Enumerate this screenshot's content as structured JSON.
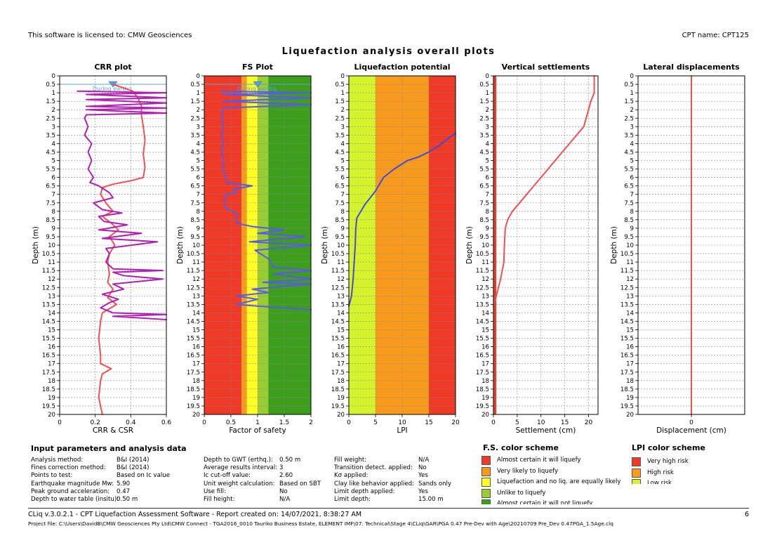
{
  "header": {
    "license": "This software is licensed to: CMW Geosciences",
    "cpt_name": "CPT name: CPT125",
    "main_title": "Liquefaction analysis overall plots"
  },
  "colors": {
    "red": "#f03a28",
    "orange": "#f79a1e",
    "yellow": "#ffff26",
    "lightgreen": "#9acd32",
    "green": "#3c9e1c",
    "limeyellow": "#d4f32c",
    "crr": "#f05050",
    "csr": "#b020b0",
    "fs": "#5a5ae6",
    "lpi": "#4848d8",
    "settlement": "#f05050",
    "displacement": "#f05050",
    "gwt": "#5aa0dc"
  },
  "chart_data": [
    {
      "type": "line",
      "title": "CRR plot",
      "xlabel": "CRR & CSR",
      "ylabel": "Depth (m)",
      "xlim": [
        0,
        0.6
      ],
      "ylim": [
        0,
        20
      ],
      "y_inverted": true,
      "xticks": [
        "0",
        "0.2",
        "0.4",
        "0.6"
      ],
      "annotation": "During earthq.",
      "gwt_depth": 0.5,
      "series": [
        {
          "key": "crr",
          "points": [
            [
              0.3,
              0.5
            ],
            [
              0.41,
              0.9
            ],
            [
              0.44,
              1.3
            ],
            [
              0.46,
              1.8
            ],
            [
              0.46,
              2.3
            ],
            [
              0.47,
              3.0
            ],
            [
              0.48,
              3.8
            ],
            [
              0.47,
              4.6
            ],
            [
              0.48,
              5.4
            ],
            [
              0.47,
              6.0
            ],
            [
              0.4,
              6.2
            ],
            [
              0.3,
              6.4
            ],
            [
              0.24,
              6.6
            ],
            [
              0.23,
              7.0
            ],
            [
              0.26,
              7.5
            ],
            [
              0.3,
              8.0
            ],
            [
              0.24,
              8.3
            ],
            [
              0.29,
              8.7
            ],
            [
              0.33,
              9.1
            ],
            [
              0.28,
              9.5
            ],
            [
              0.31,
              10.0
            ],
            [
              0.28,
              10.5
            ],
            [
              0.27,
              11.0
            ],
            [
              0.28,
              11.7
            ],
            [
              0.27,
              12.2
            ],
            [
              0.3,
              12.6
            ],
            [
              0.27,
              13.1
            ],
            [
              0.32,
              13.5
            ],
            [
              0.24,
              14.0
            ],
            [
              0.23,
              14.5
            ],
            [
              0.22,
              15.5
            ],
            [
              0.23,
              16.5
            ],
            [
              0.23,
              17.0
            ],
            [
              0.29,
              17.3
            ],
            [
              0.24,
              17.6
            ],
            [
              0.23,
              18.0
            ],
            [
              0.22,
              19.0
            ],
            [
              0.24,
              20.0
            ]
          ]
        },
        {
          "key": "csr",
          "points": [
            [
              0.1,
              0.9
            ],
            [
              0.6,
              1.0
            ],
            [
              0.15,
              1.1
            ],
            [
              0.6,
              1.3
            ],
            [
              0.15,
              1.4
            ],
            [
              0.6,
              1.6
            ],
            [
              0.15,
              1.8
            ],
            [
              0.6,
              1.9
            ],
            [
              0.15,
              2.0
            ],
            [
              0.6,
              2.2
            ],
            [
              0.15,
              2.3
            ],
            [
              0.14,
              2.5
            ],
            [
              0.16,
              3.0
            ],
            [
              0.14,
              3.5
            ],
            [
              0.18,
              4.0
            ],
            [
              0.16,
              4.5
            ],
            [
              0.18,
              5.0
            ],
            [
              0.16,
              5.5
            ],
            [
              0.19,
              6.0
            ],
            [
              0.17,
              6.3
            ],
            [
              0.22,
              6.5
            ],
            [
              0.28,
              6.9
            ],
            [
              0.3,
              7.2
            ],
            [
              0.19,
              7.5
            ],
            [
              0.24,
              7.9
            ],
            [
              0.35,
              8.1
            ],
            [
              0.22,
              8.3
            ],
            [
              0.25,
              8.6
            ],
            [
              0.38,
              8.8
            ],
            [
              0.22,
              9.1
            ],
            [
              0.46,
              9.3
            ],
            [
              0.24,
              9.6
            ],
            [
              0.55,
              9.8
            ],
            [
              0.26,
              10.2
            ],
            [
              0.28,
              10.5
            ],
            [
              0.26,
              11.0
            ],
            [
              0.3,
              11.4
            ],
            [
              0.58,
              11.5
            ],
            [
              0.3,
              11.6
            ],
            [
              0.36,
              11.8
            ],
            [
              0.58,
              12.0
            ],
            [
              0.3,
              12.3
            ],
            [
              0.36,
              12.6
            ],
            [
              0.24,
              12.9
            ],
            [
              0.33,
              13.2
            ],
            [
              0.28,
              13.4
            ],
            [
              0.23,
              13.7
            ],
            [
              0.3,
              14.0
            ],
            [
              0.6,
              14.1
            ],
            [
              0.3,
              14.2
            ],
            [
              0.6,
              14.4
            ]
          ]
        }
      ]
    },
    {
      "type": "line",
      "title": "FS Plot",
      "xlabel": "Factor of safety",
      "ylabel": "Depth (m)",
      "xlim": [
        0,
        2
      ],
      "ylim": [
        0,
        20
      ],
      "y_inverted": true,
      "xticks": [
        "0",
        "0.5",
        "1",
        "1.5",
        "2"
      ],
      "annotation": "During earthq.",
      "gwt_depth": 0.5,
      "bands": [
        {
          "from": 0,
          "to": 0.7,
          "color_key": "red"
        },
        {
          "from": 0.7,
          "to": 0.8,
          "color_key": "orange"
        },
        {
          "from": 0.8,
          "to": 1.0,
          "color_key": "yellow"
        },
        {
          "from": 1.0,
          "to": 1.2,
          "color_key": "lightgreen"
        },
        {
          "from": 1.2,
          "to": 2.0,
          "color_key": "green"
        }
      ],
      "series": [
        {
          "key": "fs",
          "points": [
            [
              0.3,
              0.9
            ],
            [
              2.0,
              1.0
            ],
            [
              0.35,
              1.1
            ],
            [
              2.0,
              1.3
            ],
            [
              0.35,
              1.5
            ],
            [
              2.0,
              1.7
            ],
            [
              0.35,
              1.9
            ],
            [
              0.33,
              2.3
            ],
            [
              0.35,
              3.0
            ],
            [
              0.33,
              3.5
            ],
            [
              0.35,
              4.0
            ],
            [
              0.33,
              4.5
            ],
            [
              0.36,
              5.0
            ],
            [
              0.35,
              5.5
            ],
            [
              0.4,
              6.0
            ],
            [
              0.42,
              6.3
            ],
            [
              0.9,
              6.5
            ],
            [
              0.55,
              6.7
            ],
            [
              0.6,
              6.9
            ],
            [
              0.4,
              7.0
            ],
            [
              0.38,
              7.4
            ],
            [
              0.4,
              7.8
            ],
            [
              0.6,
              8.1
            ],
            [
              0.62,
              8.4
            ],
            [
              0.6,
              8.7
            ],
            [
              0.9,
              8.9
            ],
            [
              1.5,
              9.1
            ],
            [
              1.0,
              9.3
            ],
            [
              1.9,
              9.5
            ],
            [
              0.85,
              9.8
            ],
            [
              2.0,
              10.0
            ],
            [
              0.95,
              10.3
            ],
            [
              1.2,
              10.8
            ],
            [
              1.3,
              11.3
            ],
            [
              2.0,
              11.5
            ],
            [
              1.3,
              11.7
            ],
            [
              2.0,
              12.0
            ],
            [
              1.1,
              12.2
            ],
            [
              2.0,
              12.3
            ],
            [
              0.9,
              12.6
            ],
            [
              1.2,
              12.8
            ],
            [
              0.6,
              13.0
            ],
            [
              1.0,
              13.2
            ],
            [
              0.6,
              13.5
            ],
            [
              1.0,
              13.6
            ],
            [
              2.0,
              13.8
            ]
          ]
        }
      ]
    },
    {
      "type": "line",
      "title": "Liquefaction potential",
      "xlabel": "LPI",
      "ylabel": "Depth (m)",
      "xlim": [
        0,
        20
      ],
      "ylim": [
        0,
        20
      ],
      "y_inverted": true,
      "xticks": [
        "0",
        "5",
        "10",
        "15",
        "20"
      ],
      "bands": [
        {
          "from": 0,
          "to": 5,
          "color_key": "limeyellow"
        },
        {
          "from": 5,
          "to": 15,
          "color_key": "orange"
        },
        {
          "from": 15,
          "to": 20,
          "color_key": "red"
        }
      ],
      "series": [
        {
          "key": "lpi",
          "points": [
            [
              0.0,
              13.6
            ],
            [
              0.5,
              13.0
            ],
            [
              0.8,
              12.0
            ],
            [
              1.0,
              11.0
            ],
            [
              1.2,
              10.0
            ],
            [
              1.3,
              9.0
            ],
            [
              1.5,
              8.4
            ],
            [
              3.0,
              7.6
            ],
            [
              5.0,
              6.8
            ],
            [
              6.5,
              6.0
            ],
            [
              8.5,
              5.5
            ],
            [
              11.0,
              5.0
            ],
            [
              13.0,
              4.8
            ],
            [
              15.0,
              4.5
            ],
            [
              17.0,
              4.1
            ],
            [
              19.0,
              3.6
            ],
            [
              20.0,
              3.4
            ]
          ]
        }
      ]
    },
    {
      "type": "line",
      "title": "Vertical settlements",
      "xlabel": "Settlement (cm)",
      "ylabel": "Depth (m)",
      "xlim": [
        0,
        22
      ],
      "ylim": [
        0,
        20
      ],
      "y_inverted": true,
      "xticks": [
        "0",
        "5",
        "10",
        "15",
        "20"
      ],
      "bands": [
        {
          "from": 0,
          "to": 0.6,
          "color_key": "red"
        }
      ],
      "series": [
        {
          "key": "settlement",
          "points": [
            [
              0.0,
              13.6
            ],
            [
              0.6,
              13.0
            ],
            [
              1.5,
              12.0
            ],
            [
              2.2,
              11.0
            ],
            [
              2.3,
              10.0
            ],
            [
              2.5,
              9.0
            ],
            [
              3.0,
              8.5
            ],
            [
              4.0,
              8.0
            ],
            [
              5.5,
              7.5
            ],
            [
              7.0,
              7.0
            ],
            [
              8.5,
              6.5
            ],
            [
              10.0,
              6.0
            ],
            [
              11.5,
              5.5
            ],
            [
              13.0,
              5.0
            ],
            [
              14.5,
              4.5
            ],
            [
              16.0,
              4.0
            ],
            [
              17.5,
              3.5
            ],
            [
              19.0,
              3.0
            ],
            [
              19.5,
              2.5
            ],
            [
              20.0,
              2.0
            ],
            [
              20.5,
              1.5
            ],
            [
              21.2,
              1.0
            ],
            [
              21.2,
              0.0
            ]
          ]
        }
      ]
    },
    {
      "type": "line",
      "title": "Lateral displacements",
      "xlabel": "Displacement (cm)",
      "ylabel": "Depth (m)",
      "xlim": [
        -1,
        1
      ],
      "ylim": [
        0,
        20
      ],
      "y_inverted": true,
      "xticks": [
        "0"
      ],
      "series": [
        {
          "key": "displacement",
          "points": [
            [
              0,
              0
            ],
            [
              0,
              20
            ]
          ]
        }
      ]
    }
  ],
  "input_params": {
    "title": "Input parameters and analysis data",
    "col1": [
      {
        "label": "Analysis method:",
        "value": "B&I (2014)"
      },
      {
        "label": "Fines correction method:",
        "value": "B&I (2014)"
      },
      {
        "label": "Points to test:",
        "value": "Based on Ic value"
      },
      {
        "label": "Earthquake magnitude Mw:",
        "value": "5.90"
      },
      {
        "label": "Peak ground acceleration:",
        "value": "0.47"
      },
      {
        "label": "Depth to water table (insitu):",
        "value": "0.50 m"
      }
    ],
    "col2": [
      {
        "label": "Depth to GWT (erthq.):",
        "value": "0.50 m"
      },
      {
        "label": "Average results interval:",
        "value": "3"
      },
      {
        "label": "Ic cut-off value:",
        "value": "2.60"
      },
      {
        "label": "Unit weight calculation:",
        "value": "Based on SBT"
      },
      {
        "label": "Use fill:",
        "value": "No"
      },
      {
        "label": "Fill height:",
        "value": "N/A"
      }
    ],
    "col3": [
      {
        "label": "Fill weight:",
        "value": "N/A"
      },
      {
        "label": "Transition detect. applied:",
        "value": "No"
      },
      {
        "label": "Kσ applied:",
        "value": "Yes"
      },
      {
        "label": "Clay like behavior applied:",
        "value": "Sands only"
      },
      {
        "label": "Limit depth applied:",
        "value": "Yes"
      },
      {
        "label": "Limit depth:",
        "value": "15.00 m"
      }
    ]
  },
  "fs_scheme": {
    "title": "F.S. color scheme",
    "items": [
      {
        "label": "Almost certain it will liquefy",
        "color": "#f03a28"
      },
      {
        "label": "Very likely to liquefy",
        "color": "#f79a1e"
      },
      {
        "label": "Liquefaction and no liq. are equally likely",
        "color": "#ffff26"
      },
      {
        "label": "Unlike to liquefy",
        "color": "#9acd32"
      },
      {
        "label": "Almost certain it will not liquefy",
        "color": "#3c9e1c"
      }
    ]
  },
  "lpi_scheme": {
    "title": "LPI color scheme",
    "items": [
      {
        "label": "Very high risk",
        "color": "#f03a28"
      },
      {
        "label": "High risk",
        "color": "#f79a1e"
      },
      {
        "label": "Low risk",
        "color": "#d4f32c"
      }
    ]
  },
  "footer": {
    "version": "CLiq v.3.0.2.1 - CPT Liquefaction Assessment Software - Report created on: 14/07/2021, 8:38:27 AM",
    "page": "6",
    "project_file": "Project file: C:\\Users\\DavidB\\CMW Geosciences Pty Ltd\\CMW Connect - TGA2016_0010 Tauriko Business Estate, ELEMENT IMF\\07. Technical\\Stage 4\\CLiq\\GAR\\PGA 0.47 Pre-Dev with Age\\20210709 Pre_Dev 0.47PGA_1.5Age.clq"
  }
}
